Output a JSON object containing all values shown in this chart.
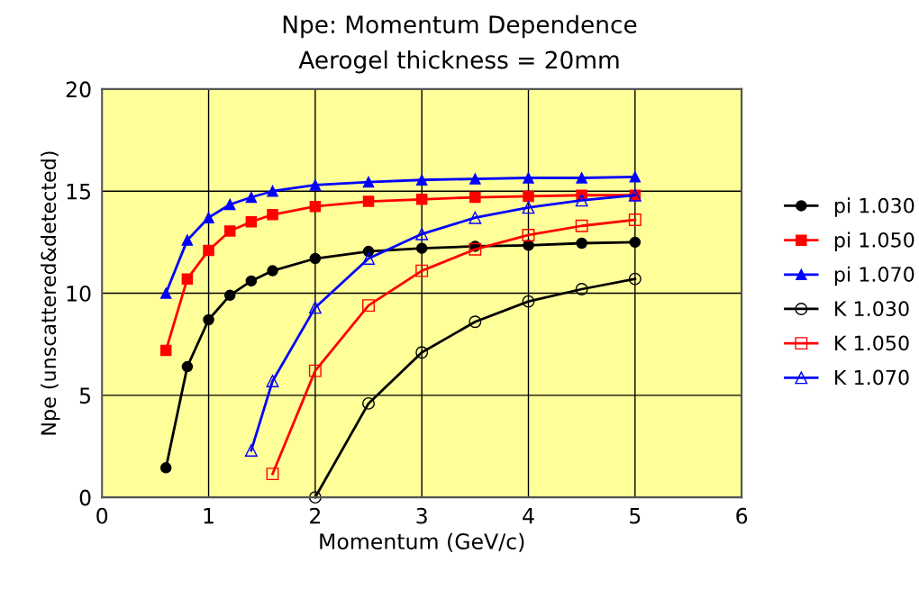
{
  "chart_data": {
    "type": "line",
    "title": "Npe: Momentum Dependence",
    "subtitle": "Aerogel thickness = 20mm",
    "xlabel": "Momentum (GeV/c)",
    "ylabel": "Npe (unscattered&detected)",
    "xlim": [
      0,
      6
    ],
    "xticks": [
      0,
      1,
      2,
      3,
      4,
      5,
      6
    ],
    "ylim": [
      0,
      20
    ],
    "yticks": [
      0,
      5,
      10,
      15,
      20
    ],
    "grid": true,
    "legend": "right",
    "series": [
      {
        "name": "pi 1.030",
        "color": "#000000",
        "marker": "circle",
        "x": [
          0.6,
          0.8,
          1,
          1.2,
          1.4,
          1.6,
          2,
          2.5,
          3,
          3.5,
          4,
          4.5,
          5
        ],
        "values": [
          1.45,
          6.4,
          8.7,
          9.9,
          10.6,
          11.1,
          11.7,
          12.05,
          12.2,
          12.3,
          12.35,
          12.45,
          12.5
        ]
      },
      {
        "name": "pi 1.050",
        "color": "#ff0000",
        "marker": "square",
        "x": [
          0.6,
          0.8,
          1,
          1.2,
          1.4,
          1.6,
          2,
          2.5,
          3,
          3.5,
          4,
          4.5,
          5
        ],
        "values": [
          7.2,
          10.7,
          12.1,
          13.05,
          13.5,
          13.85,
          14.25,
          14.5,
          14.6,
          14.7,
          14.75,
          14.8,
          14.8
        ]
      },
      {
        "name": "pi 1.070",
        "color": "#0000ff",
        "marker": "triangle",
        "x": [
          0.6,
          0.8,
          1,
          1.2,
          1.4,
          1.6,
          2,
          2.5,
          3,
          3.5,
          4,
          4.5,
          5
        ],
        "values": [
          10.0,
          12.6,
          13.7,
          14.35,
          14.7,
          15.0,
          15.3,
          15.45,
          15.55,
          15.6,
          15.65,
          15.65,
          15.7
        ]
      },
      {
        "name": "K 1.030",
        "color": "#000000",
        "marker": "circle-open",
        "x": [
          2,
          2.5,
          3,
          3.5,
          4,
          4.5,
          5
        ],
        "values": [
          0.0,
          4.6,
          7.1,
          8.6,
          9.6,
          10.2,
          10.7
        ]
      },
      {
        "name": "K 1.050",
        "color": "#ff0000",
        "marker": "square-open",
        "x": [
          1.6,
          2,
          2.5,
          3,
          3.5,
          4,
          4.5,
          5
        ],
        "values": [
          1.15,
          6.2,
          9.4,
          11.1,
          12.15,
          12.85,
          13.3,
          13.6
        ]
      },
      {
        "name": "K 1.070",
        "color": "#0000ff",
        "marker": "triangle-open",
        "x": [
          1.4,
          1.6,
          2,
          2.5,
          3,
          3.5,
          4,
          4.5,
          5
        ],
        "values": [
          2.3,
          5.7,
          9.3,
          11.7,
          12.9,
          13.7,
          14.2,
          14.55,
          14.8
        ]
      }
    ]
  }
}
